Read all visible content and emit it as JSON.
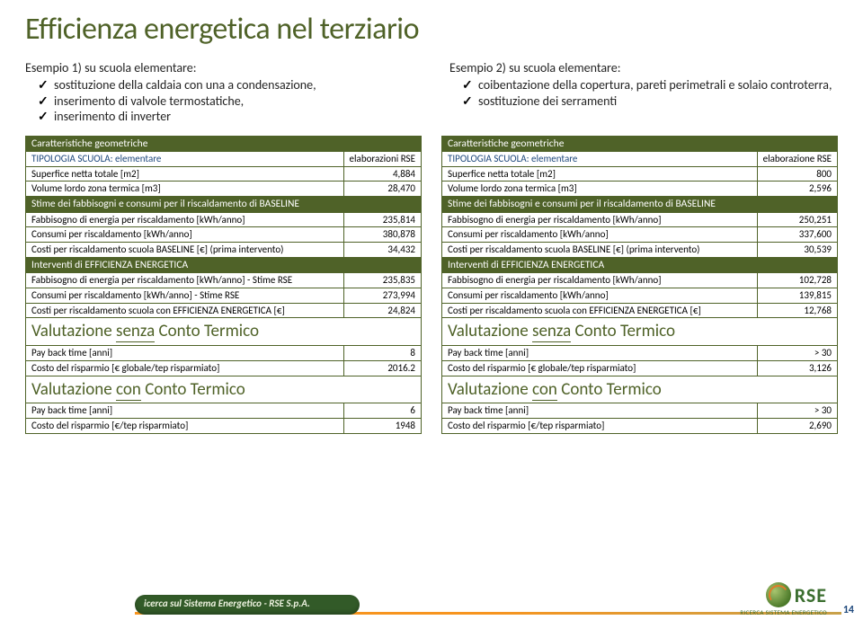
{
  "title": "Efficienza energetica nel terziario",
  "colors": {
    "theme_green": "#4f6228",
    "link_blue": "#1f497d",
    "page_bg": "#ffffff",
    "accent_orange": "#f7941e"
  },
  "fontsizes": {
    "title": 34,
    "body": 14,
    "table": 11,
    "section": 19
  },
  "intro_left": {
    "heading": "Esempio 1) su scuola elementare:",
    "items": [
      "sostituzione della caldaia con una a condensazione,",
      "inserimento di valvole termostatiche,",
      "inserimento di inverter"
    ]
  },
  "intro_right": {
    "heading": "Esempio 2) su scuola elementare:",
    "items": [
      "coibentazione della copertura, pareti perimetrali e solaio controterra,",
      "sostituzione dei serramenti"
    ]
  },
  "table_left": {
    "rows": [
      {
        "type": "hdr",
        "label": "Caratteristiche geometriche",
        "val": ""
      },
      {
        "type": "blue",
        "label": "TIPOLOGIA SCUOLA: elementare",
        "val": "elaborazioni RSE"
      },
      {
        "type": "row",
        "label": "Superfice netta totale [m2]",
        "val": "4,884"
      },
      {
        "type": "row",
        "label": "Volume lordo zona termica [m3]",
        "val": "28,470"
      },
      {
        "type": "hdr",
        "label": "Stime dei fabbisogni e consumi per il riscaldamento di BASELINE",
        "val": ""
      },
      {
        "type": "row",
        "label": "Fabbisogno di energia per riscaldamento [kWh/anno]",
        "val": "235,814"
      },
      {
        "type": "row",
        "label": "Consumi per riscaldamento [kWh/anno]",
        "val": "380,878"
      },
      {
        "type": "row",
        "label": "Costi per riscaldamento scuola BASELINE [€] (prima intervento)",
        "val": "34,432"
      },
      {
        "type": "hdr",
        "label": "Interventi di EFFICIENZA ENERGETICA",
        "val": ""
      },
      {
        "type": "row",
        "label": "Fabbisogno di energia per riscaldamento [kWh/anno] - Stime RSE",
        "val": "235,835"
      },
      {
        "type": "row",
        "label": "Consumi per riscaldamento [kWh/anno] - Stime RSE",
        "val": "273,994"
      },
      {
        "type": "row",
        "label": "Costi per riscaldamento scuola con EFFICIENZA ENERGETICA [€]",
        "val": "24,824"
      },
      {
        "type": "tall",
        "label_pre": "Valutazione ",
        "label_u": "senza",
        "label_post": " Conto Termico",
        "val": ""
      },
      {
        "type": "row",
        "label": "Pay back time [anni]",
        "val": "8"
      },
      {
        "type": "row",
        "label": "Costo del risparmio [€ globale/tep risparmiato]",
        "val": "2016.2"
      },
      {
        "type": "tall",
        "label_pre": "Valutazione ",
        "label_u": "con",
        "label_post": " Conto Termico",
        "val": ""
      },
      {
        "type": "row",
        "label": "Pay back time [anni]",
        "val": "6"
      },
      {
        "type": "row",
        "label": "Costo del risparmio [€/tep risparmiato]",
        "val": "1948"
      }
    ]
  },
  "table_right": {
    "rows": [
      {
        "type": "hdr",
        "label": "Caratteristiche geometriche",
        "val": ""
      },
      {
        "type": "blue",
        "label": "TIPOLOGIA SCUOLA: elementare",
        "val": "elaborazione RSE"
      },
      {
        "type": "row",
        "label": "Superfice netta totale [m2]",
        "val": "800"
      },
      {
        "type": "row",
        "label": "Volume lordo zona termica [m3]",
        "val": "2,596"
      },
      {
        "type": "hdr",
        "label": "Stime dei fabbisogni e consumi per il riscaldamento di BASELINE",
        "val": ""
      },
      {
        "type": "row",
        "label": "Fabbisogno di energia per riscaldamento [kWh/anno]",
        "val": "250,251"
      },
      {
        "type": "row",
        "label": "Consumi per riscaldamento [kWh/anno]",
        "val": "337,600"
      },
      {
        "type": "row",
        "label": "Costi per riscaldamento scuola BASELINE [€] (prima intervento)",
        "val": "30,539"
      },
      {
        "type": "hdr",
        "label": "Interventi di EFFICIENZA ENERGETICA",
        "val": ""
      },
      {
        "type": "row",
        "label": "Fabbisogno di energia per riscaldamento [kWh/anno]",
        "val": "102,728"
      },
      {
        "type": "row",
        "label": "Consumi per riscaldamento [kWh/anno]",
        "val": "139,815"
      },
      {
        "type": "row",
        "label": "Costi per riscaldamento scuola con EFFICIENZA ENERGETICA [€]",
        "val": "12,768"
      },
      {
        "type": "tall",
        "label_pre": "Valutazione ",
        "label_u": "senza",
        "label_post": " Conto Termico",
        "val": ""
      },
      {
        "type": "row",
        "label": "Pay back time [anni]",
        "val": "> 30"
      },
      {
        "type": "row",
        "label": "Costo del risparmio [€ globale/tep risparmiato]",
        "val": "3,126"
      },
      {
        "type": "tall",
        "label_pre": "Valutazione ",
        "label_u": "con",
        "label_post": " Conto Termico",
        "val": ""
      },
      {
        "type": "row",
        "label": "Pay back time [anni]",
        "val": "> 30"
      },
      {
        "type": "row",
        "label": "Costo del risparmio [€/tep risparmiato]",
        "val": "2,690"
      }
    ]
  },
  "footer": {
    "pill": "icerca sul Sistema Energetico - RSE S.p.A.",
    "logo": "RSE",
    "sub": "RICERCA SISTEMA ENERGETICO",
    "page": "14"
  }
}
